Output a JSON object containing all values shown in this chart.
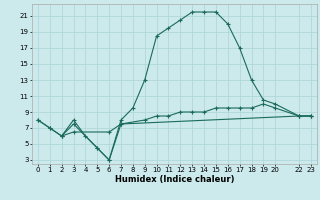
{
  "title": "",
  "xlabel": "Humidex (Indice chaleur)",
  "xlim": [
    -0.5,
    23.5
  ],
  "ylim": [
    2.5,
    22.5
  ],
  "xticks": [
    0,
    1,
    2,
    3,
    4,
    5,
    6,
    7,
    8,
    9,
    10,
    11,
    12,
    13,
    14,
    15,
    16,
    17,
    18,
    19,
    20,
    22,
    23
  ],
  "xtick_labels": [
    "0",
    "1",
    "2",
    "3",
    "4",
    "5",
    "6",
    "7",
    "8",
    "9",
    "10",
    "11",
    "12",
    "13",
    "14",
    "15",
    "16",
    "17",
    "18",
    "19",
    "20",
    "22",
    "23"
  ],
  "yticks": [
    3,
    5,
    7,
    9,
    11,
    13,
    15,
    17,
    19,
    21
  ],
  "background_color": "#cce9ec",
  "grid_color": "#b0d8dc",
  "line_color": "#1a6b5a",
  "line1_x": [
    0,
    1,
    2,
    3,
    4,
    5,
    6,
    7,
    8,
    9,
    10,
    11,
    12,
    13,
    14,
    15,
    16,
    17,
    18,
    19,
    20,
    22,
    23
  ],
  "line1_y": [
    8,
    7,
    6,
    8,
    6,
    4.5,
    3,
    8,
    9.5,
    13,
    18.5,
    19.5,
    20.5,
    21.5,
    21.5,
    21.5,
    20,
    17,
    13,
    10.5,
    10,
    8.5,
    8.5
  ],
  "line2_x": [
    0,
    1,
    2,
    3,
    5,
    6,
    7,
    22,
    23
  ],
  "line2_y": [
    8,
    7,
    6,
    7.5,
    4.5,
    3,
    7.5,
    8.5,
    8.5
  ],
  "line3_x": [
    2,
    3,
    6,
    7,
    9,
    10,
    11,
    12,
    13,
    14,
    15,
    16,
    17,
    18,
    19,
    20,
    22,
    23
  ],
  "line3_y": [
    6,
    6.5,
    6.5,
    7.5,
    8,
    8.5,
    8.5,
    9,
    9,
    9,
    9.5,
    9.5,
    9.5,
    9.5,
    10,
    9.5,
    8.5,
    8.5
  ]
}
